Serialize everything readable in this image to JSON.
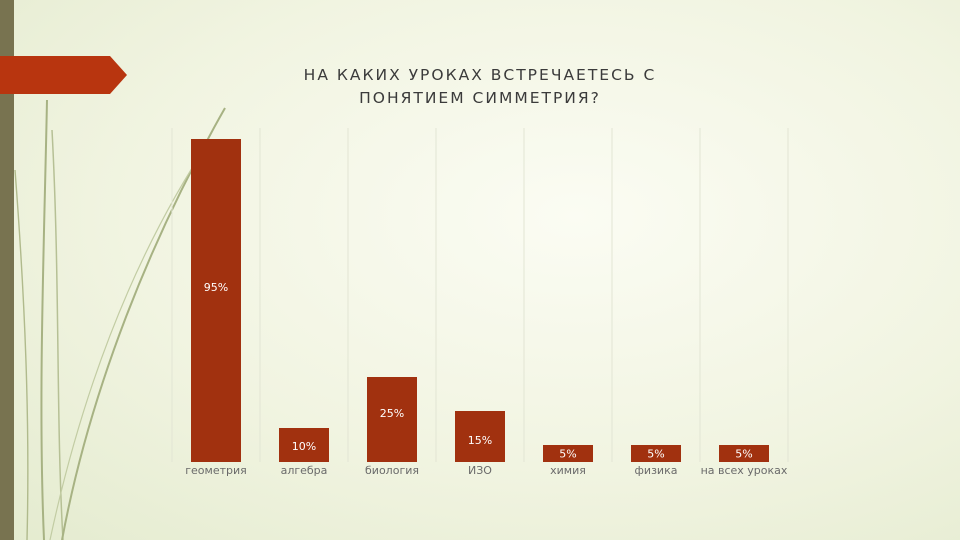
{
  "colors": {
    "bar": "#a1310f",
    "arrow": "#b8350f",
    "strip": "#787350",
    "grid": "#e2e5d4"
  },
  "chart_data": {
    "type": "bar",
    "title_lines": [
      "НА КАКИХ УРОКАХ ВСТРЕЧАЕТЕСЬ С",
      "ПОНЯТИЕМ СИММЕТРИЯ?"
    ],
    "categories": [
      "геометрия",
      "алгебра",
      "биология",
      "ИЗО",
      "химия",
      "физика",
      "на всех уроках"
    ],
    "values": [
      95,
      10,
      25,
      15,
      5,
      5,
      5
    ],
    "labels": [
      "95%",
      "10%",
      "25%",
      "15%",
      "5%",
      "5%",
      "5%"
    ],
    "ylim": [
      0,
      100
    ],
    "grid": "vertical category separators",
    "legend": "none"
  }
}
